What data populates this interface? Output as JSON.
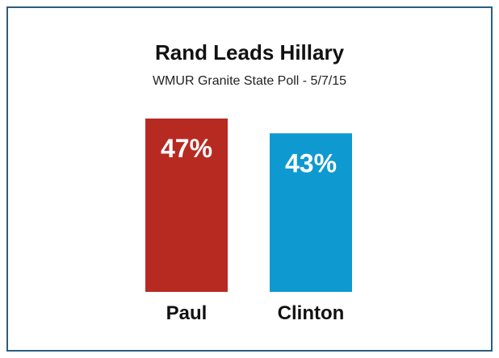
{
  "chart_data": {
    "type": "bar",
    "title": "Rand Leads Hillary",
    "subtitle": "WMUR Granite State Poll - 5/7/15",
    "categories": [
      "Paul",
      "Clinton"
    ],
    "values": [
      47,
      43
    ],
    "value_labels": [
      "47%",
      "43%"
    ],
    "colors": [
      "#b72a22",
      "#0e99d1"
    ],
    "frame_color": "#2b5d7d",
    "ylim": [
      0,
      47
    ],
    "grid": false,
    "legend": "none"
  }
}
